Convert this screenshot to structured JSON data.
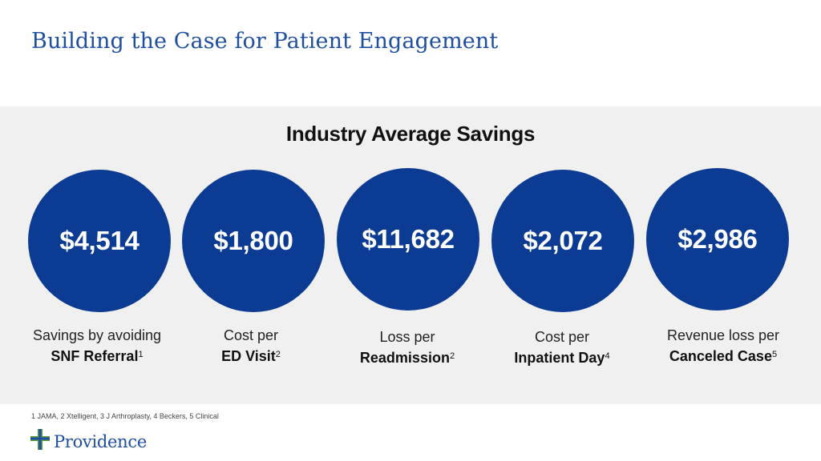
{
  "title": "Building the Case for Patient Engagement",
  "section": {
    "heading": "Industry Average Savings"
  },
  "stats": [
    {
      "value": "$4,514",
      "line1": "Savings by avoiding",
      "line2": "SNF Referral",
      "ref": "1"
    },
    {
      "value": "$1,800",
      "line1": "Cost per",
      "line2": "ED Visit",
      "ref": "2"
    },
    {
      "value": "$11,682",
      "line1": "Loss per",
      "line2": "Readmission",
      "ref": "2"
    },
    {
      "value": "$2,072",
      "line1": "Cost per",
      "line2": "Inpatient Day",
      "ref": "4"
    },
    {
      "value": "$2,986",
      "line1": "Revenue loss per",
      "line2": "Canceled Case",
      "ref": "5"
    }
  ],
  "footnote": "1 JAMA, 2 Xtelligent, 3 J Arthroplasty, 4 Beckers, 5 Clinical",
  "logo": {
    "text": "Providence",
    "icon": "providence-cross-icon"
  },
  "colors": {
    "title": "#1e4fa0",
    "circle": "#0c3b94",
    "panel": "#f0f0f0",
    "logo_green": "#5a9a3c"
  }
}
